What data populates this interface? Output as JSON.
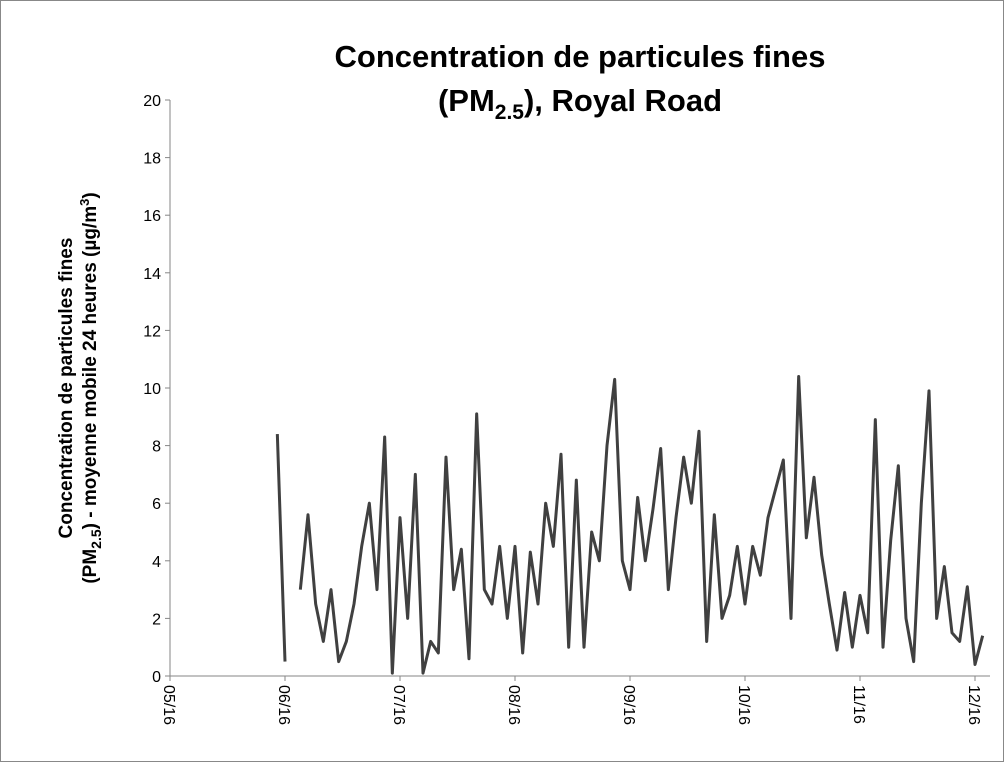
{
  "chart_data": {
    "type": "line",
    "title": [
      "Concentration de particules fines",
      "(PM",
      "2.5",
      "), Royal Road"
    ],
    "y_label": [
      "Concentration de particules fines",
      "(PM",
      "2.5",
      ") - moyenne mobile 24 heures (µg/m",
      "3",
      ")"
    ],
    "categories": [
      "05/16",
      null,
      null,
      null,
      null,
      null,
      null,
      null,
      null,
      null,
      null,
      null,
      null,
      null,
      null,
      "06/16",
      null,
      null,
      null,
      null,
      null,
      null,
      null,
      null,
      null,
      null,
      null,
      null,
      null,
      null,
      "07/16",
      null,
      null,
      null,
      null,
      null,
      null,
      null,
      null,
      null,
      null,
      null,
      null,
      null,
      null,
      "08/16",
      null,
      null,
      null,
      null,
      null,
      null,
      null,
      null,
      null,
      null,
      null,
      null,
      null,
      null,
      "09/16",
      null,
      null,
      null,
      null,
      null,
      null,
      null,
      null,
      null,
      null,
      null,
      null,
      null,
      null,
      "10/16",
      null,
      null,
      null,
      null,
      null,
      null,
      null,
      null,
      null,
      null,
      null,
      null,
      null,
      null,
      "11/16",
      null,
      null,
      null,
      null,
      null,
      null,
      null,
      null,
      null,
      null,
      null,
      null,
      null,
      null,
      "12/16",
      null
    ],
    "series": [
      {
        "color": "#404040",
        "values": [
          null,
          null,
          null,
          null,
          null,
          null,
          null,
          null,
          null,
          null,
          null,
          null,
          null,
          null,
          8.4,
          0.5,
          null,
          3.0,
          5.6,
          2.5,
          1.2,
          3.0,
          0.5,
          1.2,
          2.5,
          4.5,
          6.0,
          3.0,
          8.3,
          0.1,
          5.5,
          2.0,
          7.0,
          0.1,
          1.2,
          0.8,
          7.6,
          3.0,
          4.4,
          0.6,
          9.1,
          3.0,
          2.5,
          4.5,
          2.0,
          4.5,
          0.8,
          4.3,
          2.5,
          6.0,
          4.5,
          7.7,
          1.0,
          6.8,
          1.0,
          5.0,
          4.0,
          8.0,
          10.3,
          4.0,
          3.0,
          6.2,
          4.0,
          5.8,
          7.9,
          3.0,
          5.5,
          7.6,
          6.0,
          8.5,
          1.2,
          5.6,
          2.0,
          2.8,
          4.5,
          2.5,
          4.5,
          3.5,
          5.5,
          6.5,
          7.5,
          2.0,
          10.4,
          4.8,
          6.9,
          4.2,
          2.5,
          0.9,
          2.9,
          1.0,
          2.8,
          1.5,
          8.9,
          1.0,
          4.7,
          7.3,
          2.0,
          0.5,
          6.0,
          9.9,
          2.0,
          3.8,
          1.5,
          1.2,
          3.1,
          0.4,
          1.4
        ]
      }
    ],
    "ylim": [
      0,
      20
    ],
    "yticks": [
      0,
      2,
      4,
      6,
      8,
      10,
      12,
      14,
      16,
      18,
      20
    ],
    "grid": false
  }
}
